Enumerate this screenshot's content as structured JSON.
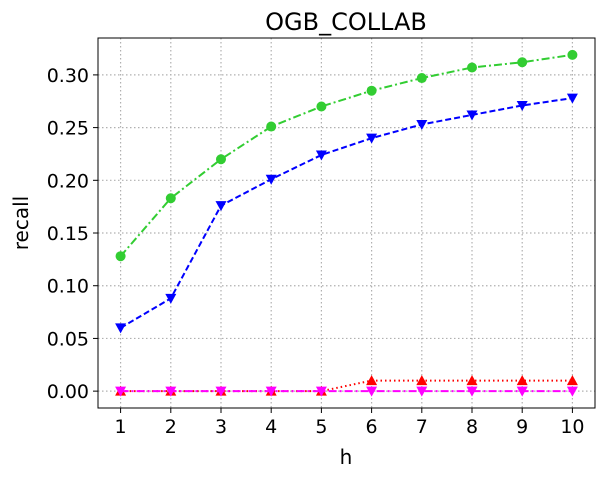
{
  "chart_data": {
    "type": "line",
    "title": "OGB_COLLAB",
    "xlabel": "h",
    "ylabel": "recall",
    "x": [
      1,
      2,
      3,
      4,
      5,
      6,
      7,
      8,
      9,
      10
    ],
    "x_tick_labels": [
      "1",
      "2",
      "3",
      "4",
      "5",
      "6",
      "7",
      "8",
      "9",
      "10"
    ],
    "y_ticks": [
      0.0,
      0.05,
      0.1,
      0.15,
      0.2,
      0.25,
      0.3
    ],
    "y_tick_labels": [
      "0.00",
      "0.05",
      "0.10",
      "0.15",
      "0.20",
      "0.25",
      "0.30"
    ],
    "xlim": [
      0.55,
      10.45
    ],
    "ylim": [
      -0.016,
      0.335
    ],
    "grid": true,
    "series": [
      {
        "color": "#32cd32",
        "line_style": "dashdot",
        "marker": "circle",
        "values": [
          0.128,
          0.183,
          0.22,
          0.251,
          0.27,
          0.285,
          0.297,
          0.307,
          0.312,
          0.319
        ]
      },
      {
        "color": "#0000ff",
        "line_style": "dashed",
        "marker": "triangle-down",
        "values": [
          0.06,
          0.088,
          0.176,
          0.201,
          0.224,
          0.24,
          0.253,
          0.262,
          0.271,
          0.278
        ]
      },
      {
        "color": "#ff0000",
        "line_style": "dotted",
        "marker": "triangle-up",
        "values": [
          0.0,
          0.0,
          0.0,
          0.0,
          0.0,
          0.01,
          0.01,
          0.01,
          0.01,
          0.01
        ]
      },
      {
        "color": "#ff00ff",
        "line_style": "dashdot",
        "marker": "triangle-down",
        "values": [
          0.0,
          0.0,
          0.0,
          0.0,
          0.0,
          0.0,
          0.0,
          0.0,
          0.0,
          0.0
        ]
      }
    ]
  }
}
